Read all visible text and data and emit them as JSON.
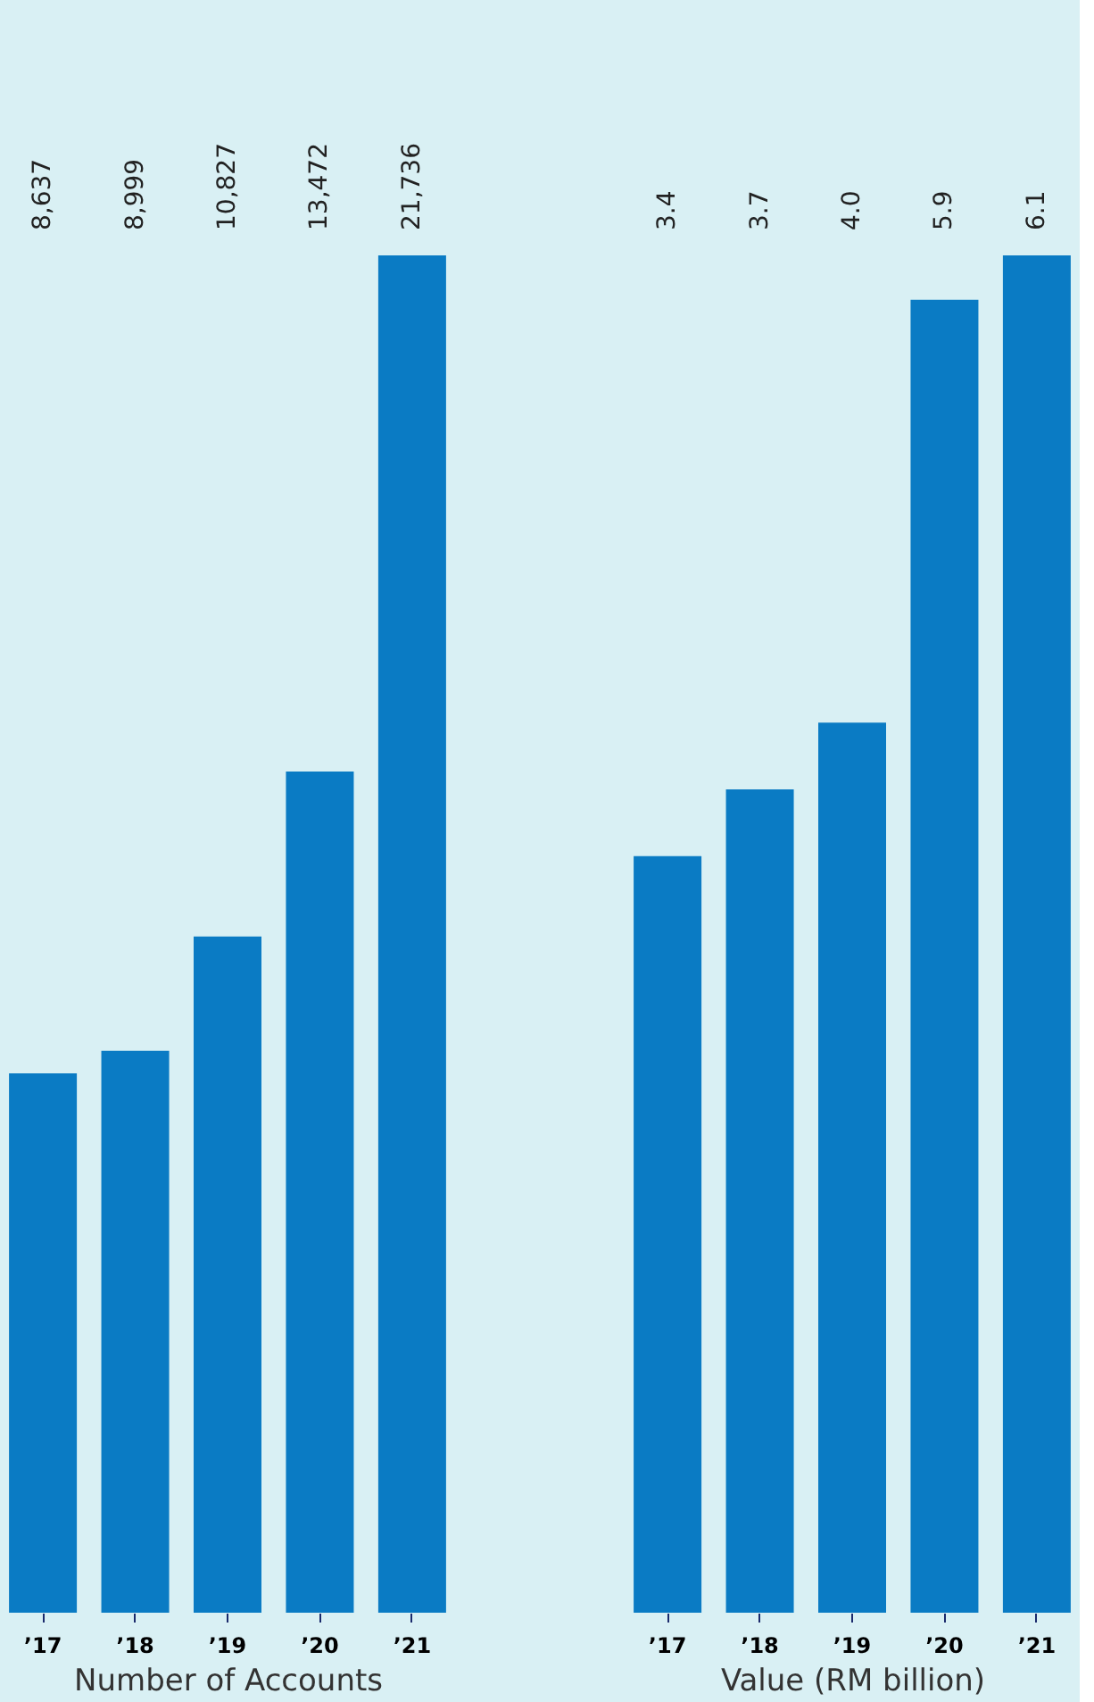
{
  "chart_data": [
    {
      "type": "bar",
      "xlabel": "Number of Accounts",
      "categories": [
        "’17",
        "’18",
        "’19",
        "’20",
        "’21"
      ],
      "values": [
        8637,
        8999,
        10827,
        13472,
        21736
      ],
      "value_labels": [
        "8,637",
        "8,999",
        "10,827",
        "13,472",
        "21,736"
      ],
      "color": "#0a7bc4",
      "tick_labels": "x"
    },
    {
      "type": "bar",
      "xlabel": "Value (RM billion)",
      "categories": [
        "’17",
        "’18",
        "’19",
        "’20",
        "’21"
      ],
      "values": [
        3.4,
        3.7,
        4.0,
        5.9,
        6.1
      ],
      "value_labels": [
        "3.4",
        "3.7",
        "4.0",
        "5.9",
        "6.1"
      ],
      "color": "#0a7bc4",
      "tick_labels": "x"
    }
  ]
}
